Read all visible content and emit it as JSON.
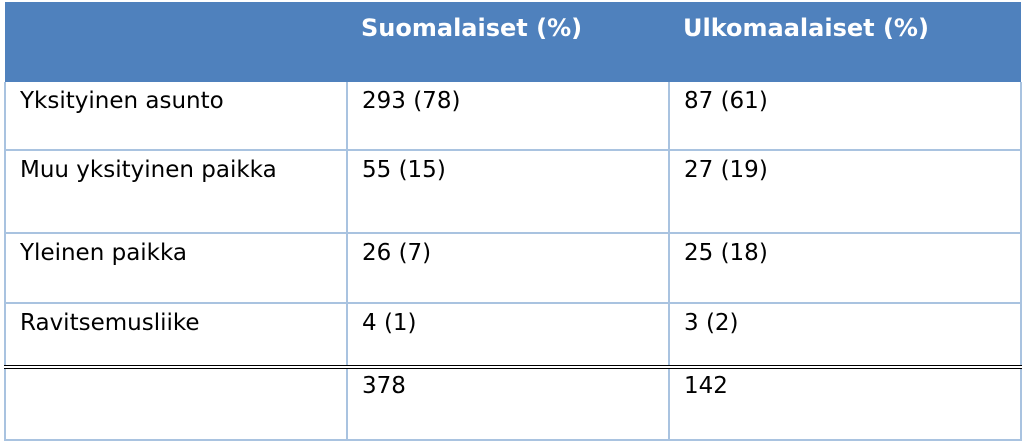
{
  "table": {
    "headers": [
      "",
      "Suomalaiset (%)",
      "Ulkomaalaiset (%)"
    ],
    "rows": [
      [
        "Yksityinen asunto",
        "293 (78)",
        "87 (61)"
      ],
      [
        "Muu yksityinen paikka",
        "55 (15)",
        "27 (19)"
      ],
      [
        "Yleinen paikka",
        "26 (7)",
        "25 (18)"
      ],
      [
        "Ravitsemusliike",
        "4 (1)",
        "3 (2)"
      ]
    ],
    "totals": [
      "",
      "378",
      "142"
    ]
  },
  "colors": {
    "header_background": "#4f81bd",
    "header_text": "#ffffff",
    "grid_lines": "#a9c3e0",
    "total_rule": "#000000"
  }
}
